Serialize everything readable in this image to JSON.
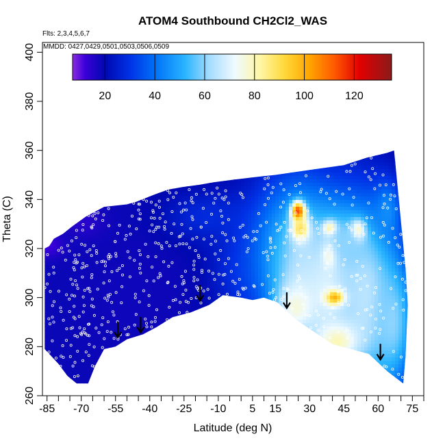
{
  "chart_data": {
    "type": "heatmap",
    "title": "ATOM4 Southbound CH2Cl2_WAS",
    "flights_note": "Flts: 2,3,4,5,6,7",
    "dates_note": "MMDD: 0427,0429,0501,0503,0506,0509",
    "xlabel": "Latitude (deg N)",
    "ylabel": "Theta (C)",
    "xlim": [
      -87,
      80
    ],
    "ylim": [
      260,
      404
    ],
    "x_ticks": [
      -85,
      -70,
      -55,
      -40,
      -25,
      -10,
      5,
      15,
      30,
      45,
      60,
      75
    ],
    "x_minor_ticks": [
      -80,
      -75,
      -65,
      -60,
      -50,
      -45,
      -35,
      -30,
      -20,
      -15,
      -5,
      0,
      10,
      20,
      25,
      35,
      40,
      50,
      55,
      65,
      70,
      80
    ],
    "y_ticks": [
      260,
      280,
      300,
      320,
      340,
      360,
      380,
      400
    ],
    "colorbar": {
      "min": 7,
      "max": 135,
      "ticks": [
        20,
        40,
        60,
        80,
        100,
        120
      ],
      "stops": [
        {
          "value": 7,
          "color": "#8a2be2"
        },
        {
          "value": 12,
          "color": "#3a00d8"
        },
        {
          "value": 20,
          "color": "#0008b0"
        },
        {
          "value": 30,
          "color": "#0032e6"
        },
        {
          "value": 40,
          "color": "#0070f8"
        },
        {
          "value": 52,
          "color": "#28b4ff"
        },
        {
          "value": 62,
          "color": "#a6dcff"
        },
        {
          "value": 72,
          "color": "#eefaff"
        },
        {
          "value": 82,
          "color": "#fff7a8"
        },
        {
          "value": 92,
          "color": "#ffd93a"
        },
        {
          "value": 102,
          "color": "#ffa500"
        },
        {
          "value": 112,
          "color": "#ff5a00"
        },
        {
          "value": 122,
          "color": "#e30000"
        },
        {
          "value": 135,
          "color": "#8b1a1a"
        }
      ]
    },
    "field_boundary": [
      [
        -86,
        279
      ],
      [
        -86,
        320
      ],
      [
        -84,
        321
      ],
      [
        -82,
        324
      ],
      [
        -78,
        326
      ],
      [
        -74,
        329
      ],
      [
        -68,
        333
      ],
      [
        -60,
        337
      ],
      [
        -50,
        338
      ],
      [
        -46,
        339
      ],
      [
        -38,
        342
      ],
      [
        -32,
        344
      ],
      [
        -26,
        345
      ],
      [
        -18,
        346
      ],
      [
        -12,
        347
      ],
      [
        -4,
        348
      ],
      [
        5,
        349
      ],
      [
        15,
        350
      ],
      [
        30,
        352
      ],
      [
        45,
        354
      ],
      [
        55,
        357
      ],
      [
        64,
        359
      ],
      [
        67,
        360
      ],
      [
        72,
        312
      ],
      [
        73,
        297
      ],
      [
        72,
        276
      ],
      [
        71,
        265
      ],
      [
        64,
        270
      ],
      [
        56,
        277
      ],
      [
        48,
        279
      ],
      [
        40,
        281
      ],
      [
        32,
        286
      ],
      [
        24,
        291
      ],
      [
        16,
        298
      ],
      [
        10,
        300
      ],
      [
        5,
        299
      ],
      [
        0,
        300
      ],
      [
        -8,
        301
      ],
      [
        -14,
        297
      ],
      [
        -22,
        294
      ],
      [
        -30,
        292
      ],
      [
        -37,
        288
      ],
      [
        -43,
        285
      ],
      [
        -50,
        283
      ],
      [
        -55,
        280
      ],
      [
        -60,
        279
      ],
      [
        -64,
        272
      ],
      [
        -67,
        265
      ],
      [
        -72,
        265
      ],
      [
        -76,
        268
      ],
      [
        -80,
        273
      ],
      [
        -85,
        278
      ]
    ],
    "field_background_value": 19,
    "field_components": [
      {
        "lat": -84,
        "theta": 321,
        "value": 10,
        "w": 7,
        "h": 5
      },
      {
        "lat": -68,
        "theta": 330,
        "value": 12,
        "w": 9,
        "h": 6
      },
      {
        "lat": -50,
        "theta": 300,
        "value": 18,
        "w": 30,
        "h": 40
      },
      {
        "lat": -15,
        "theta": 333,
        "value": 28,
        "w": 18,
        "h": 10
      },
      {
        "lat": 0,
        "theta": 312,
        "value": 28,
        "w": 14,
        "h": 22
      },
      {
        "lat": 15,
        "theta": 318,
        "value": 40,
        "w": 14,
        "h": 30
      },
      {
        "lat": 25,
        "theta": 312,
        "value": 58,
        "w": 12,
        "h": 30
      },
      {
        "lat": 38,
        "theta": 305,
        "value": 70,
        "w": 16,
        "h": 34
      },
      {
        "lat": 55,
        "theta": 300,
        "value": 66,
        "w": 14,
        "h": 36
      },
      {
        "lat": 66,
        "theta": 290,
        "value": 60,
        "w": 10,
        "h": 26
      },
      {
        "lat": 42,
        "theta": 282,
        "value": 80,
        "w": 10,
        "h": 8
      },
      {
        "lat": 24,
        "theta": 296,
        "value": 76,
        "w": 8,
        "h": 10
      },
      {
        "lat": 25,
        "theta": 335,
        "value": 118,
        "w": 3,
        "h": 4
      },
      {
        "lat": 26,
        "theta": 328,
        "value": 90,
        "w": 4,
        "h": 5
      },
      {
        "lat": 39,
        "theta": 328,
        "value": 96,
        "w": 3,
        "h": 3
      },
      {
        "lat": 39,
        "theta": 318,
        "value": 88,
        "w": 3,
        "h": 5
      },
      {
        "lat": 51,
        "theta": 327,
        "value": 100,
        "w": 3,
        "h": 4
      },
      {
        "lat": 41,
        "theta": 300,
        "value": 100,
        "w": 4,
        "h": 3
      },
      {
        "lat": 46,
        "theta": 322,
        "value": 60,
        "w": 10,
        "h": 10
      },
      {
        "lat": 64,
        "theta": 335,
        "value": 45,
        "w": 6,
        "h": 12
      }
    ],
    "descent_arrows": [
      {
        "lat": -54,
        "theta": 284
      },
      {
        "lat": -44,
        "theta": 286
      },
      {
        "lat": -18,
        "theta": 299
      },
      {
        "lat": 20,
        "theta": 296
      },
      {
        "lat": 61,
        "theta": 275
      }
    ],
    "sample_points": {
      "count": 620,
      "marker_color": "#ffffff"
    }
  }
}
